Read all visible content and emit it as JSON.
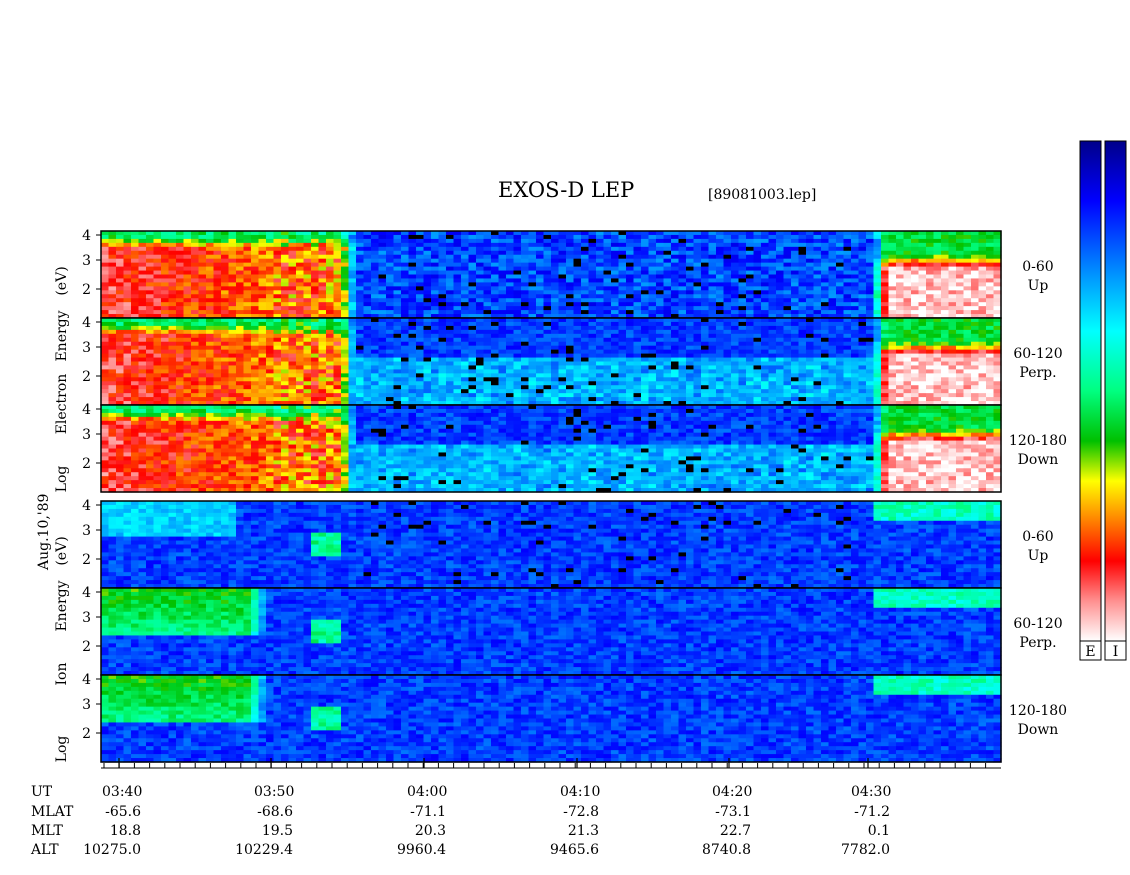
{
  "title": "EXOS-D LEP",
  "file_tag": "[89081003.lep]",
  "date_label": "Aug.10,'89",
  "colorbar_labels": [
    "E",
    "I"
  ],
  "chart_data": [
    {
      "type": "heatmap",
      "species": "Electron",
      "ylabel_words": [
        "Log",
        "Electron",
        "Energy",
        "(eV)"
      ],
      "yticks": [
        "4",
        "3",
        "2"
      ],
      "ylim": [
        1,
        4
      ],
      "panels": [
        {
          "angle_range": "0-60",
          "direction": "Up"
        },
        {
          "angle_range": "60-120",
          "direction": "Perp."
        },
        {
          "angle_range": "120-180",
          "direction": "Down"
        }
      ]
    },
    {
      "type": "heatmap",
      "species": "Ion",
      "ylabel_words": [
        "Log",
        "Ion",
        "Energy",
        "(eV)"
      ],
      "yticks": [
        "4",
        "3",
        "2"
      ],
      "ylim": [
        1,
        4
      ],
      "panels": [
        {
          "angle_range": "0-60",
          "direction": "Up"
        },
        {
          "angle_range": "60-120",
          "direction": "Perp."
        },
        {
          "angle_range": "120-180",
          "direction": "Down"
        }
      ]
    }
  ],
  "time_axis": {
    "row_labels": [
      "UT",
      "MLAT",
      "MLT",
      "ALT"
    ],
    "ticks": [
      {
        "UT": "03:40",
        "MLAT": "-65.6",
        "MLT": "18.8",
        "ALT": "10275.0"
      },
      {
        "UT": "03:50",
        "MLAT": "-68.6",
        "MLT": "19.5",
        "ALT": "10229.4"
      },
      {
        "UT": "04:00",
        "MLAT": "-71.1",
        "MLT": "20.3",
        "ALT": "9960.4"
      },
      {
        "UT": "04:10",
        "MLAT": "-72.8",
        "MLT": "21.3",
        "ALT": "9465.6"
      },
      {
        "UT": "04:20",
        "MLAT": "-73.1",
        "MLT": "22.7",
        "ALT": "8740.8"
      },
      {
        "UT": "04:30",
        "MLAT": "-71.2",
        "MLT": "0.1",
        "ALT": "7782.0"
      }
    ]
  }
}
